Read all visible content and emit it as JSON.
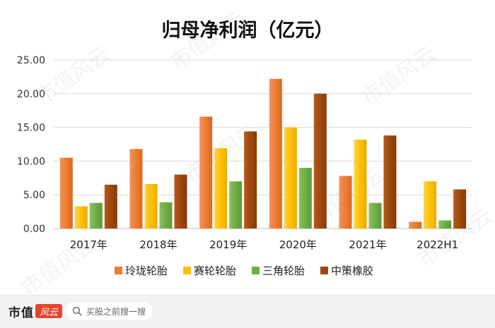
{
  "watermark": "市值风云",
  "footer": {
    "brand": "市值",
    "brand_mark": "风云",
    "search_placeholder": "买股之前搜一搜"
  },
  "colors": {
    "玲珑轮胎": "#ED7D31",
    "赛轮轮胎": "#FFC000",
    "三角轮胎": "#70AD47",
    "中策橡胶": "#9E480E"
  },
  "chart_data": {
    "type": "bar",
    "title": "归母净利润（亿元）",
    "categories": [
      "2017年",
      "2018年",
      "2019年",
      "2020年",
      "2021年",
      "2022H1"
    ],
    "series": [
      {
        "name": "玲珑轮胎",
        "values": [
          10.5,
          11.8,
          16.6,
          22.2,
          7.8,
          1.0
        ]
      },
      {
        "name": "赛轮轮胎",
        "values": [
          3.3,
          6.6,
          11.9,
          15.0,
          13.2,
          7.0
        ]
      },
      {
        "name": "三角轮胎",
        "values": [
          3.8,
          3.9,
          7.0,
          9.0,
          3.8,
          1.2
        ]
      },
      {
        "name": "中策橡胶",
        "values": [
          6.5,
          8.0,
          14.4,
          20.0,
          13.8,
          5.8
        ]
      }
    ],
    "ylim": [
      0,
      25
    ],
    "yticks": [
      "0.00",
      "5.00",
      "10.00",
      "15.00",
      "20.00",
      "25.00"
    ],
    "grid": true,
    "legend": "bottom"
  }
}
